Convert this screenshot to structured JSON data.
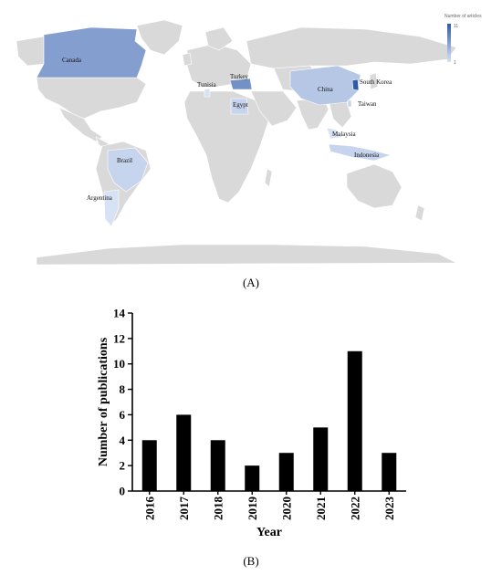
{
  "map": {
    "legend": {
      "title": "Number of articles",
      "max_label": "11",
      "min_label": "1",
      "max_color": "#2f5aa8",
      "min_color": "#d8e2f5"
    },
    "base_color": "#d9d9d9",
    "countries": [
      {
        "name": "Canada",
        "articles": 6
      },
      {
        "name": "Turkey",
        "articles": 7
      },
      {
        "name": "Tunisia",
        "articles": 1
      },
      {
        "name": "Egypt",
        "articles": 2
      },
      {
        "name": "China",
        "articles": 3
      },
      {
        "name": "South Korea",
        "articles": 11
      },
      {
        "name": "Taiwan",
        "articles": 2
      },
      {
        "name": "Malaysia",
        "articles": 1
      },
      {
        "name": "Indonesia",
        "articles": 2
      },
      {
        "name": "Brazil",
        "articles": 2
      },
      {
        "name": "Argentina",
        "articles": 1
      }
    ]
  },
  "labels": {
    "panel_a": "(A)",
    "panel_b": "(B)"
  },
  "chart_data": {
    "type": "bar",
    "categories": [
      "2016",
      "2017",
      "2018",
      "2019",
      "2020",
      "2021",
      "2022",
      "2023"
    ],
    "values": [
      4,
      6,
      4,
      2,
      3,
      5,
      11,
      3
    ],
    "xlabel": "Year",
    "ylabel": "Number of publications",
    "ylim": [
      0,
      14
    ],
    "yticks": [
      0,
      2,
      4,
      6,
      8,
      10,
      12,
      14
    ],
    "bar_color": "#000000",
    "grid": false
  }
}
